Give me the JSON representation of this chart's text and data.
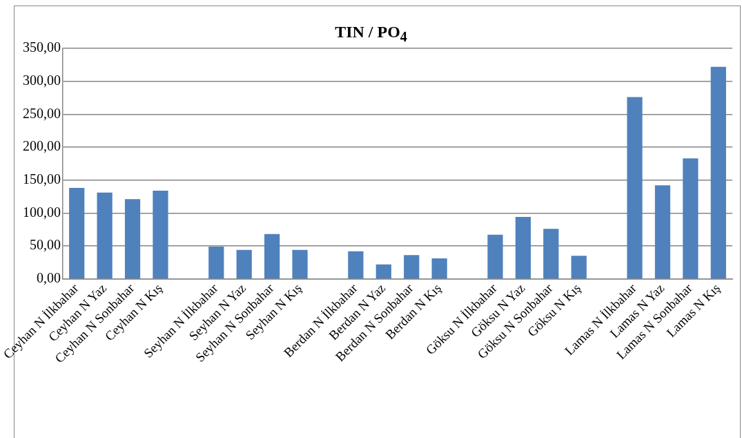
{
  "chart_data": {
    "type": "bar",
    "title": "TIN / PO$_{4}$",
    "categories": [
      "Ceyhan N İlkbahar",
      "Ceyhan N Yaz",
      "Ceyhan N Sonbahar",
      "Ceyhan N Kış",
      null,
      "Seyhan N İlkbahar",
      "Seyhan N Yaz",
      "Seyhan N Sonbahar",
      "Seyhan N Kış",
      null,
      "Berdan N İlkbahar",
      "Berdan N Yaz",
      "Berdan N Sonbahar",
      "Berdan N Kış",
      null,
      "Göksu N İlkbahar",
      "Göksu N Yaz",
      "Göksu N Sonbahar",
      "Göksu N Kış",
      null,
      "Lamas N İlkbahar",
      "Lamas N Yaz",
      "Lamas N Sonbahar",
      "Lamas N Kış"
    ],
    "values": [
      138,
      131,
      121,
      134,
      null,
      49,
      44,
      68,
      44,
      null,
      42,
      22,
      36,
      31,
      null,
      67,
      94,
      76,
      35,
      null,
      276,
      142,
      183,
      322
    ],
    "color": "#4f81bd",
    "ylim": [
      0,
      350
    ],
    "yticks": [
      {
        "value": 0,
        "label": "0,00"
      },
      {
        "value": 50,
        "label": "50,00"
      },
      {
        "value": 100,
        "label": "100,00"
      },
      {
        "value": 150,
        "label": "150,00"
      },
      {
        "value": 200,
        "label": "200,00"
      },
      {
        "value": 250,
        "label": "250,00"
      },
      {
        "value": 300,
        "label": "300,00"
      },
      {
        "value": 350,
        "label": "350,00"
      }
    ],
    "grid": "y",
    "legend": false
  }
}
